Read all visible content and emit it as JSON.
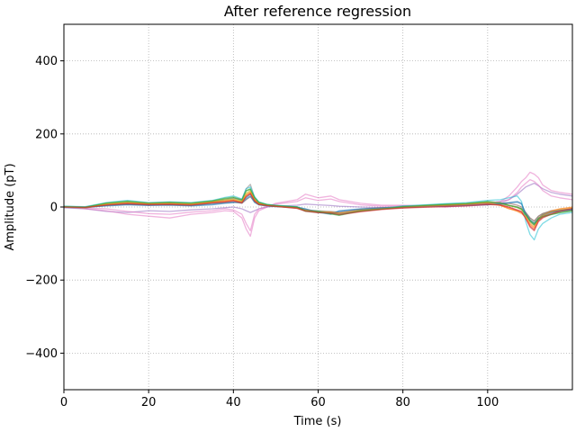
{
  "chart_data": {
    "type": "line",
    "title": "After reference regression",
    "xlabel": "Time (s)",
    "ylabel": "Amplitude (pT)",
    "xlim": [
      0,
      120
    ],
    "ylim": [
      -500,
      500
    ],
    "xticks": [
      0,
      20,
      40,
      60,
      80,
      100
    ],
    "xtick_labels": [
      "0",
      "20",
      "40",
      "60",
      "80",
      "100"
    ],
    "yticks": [
      -400,
      -200,
      0,
      200,
      400
    ],
    "ytick_labels": [
      "−400",
      "−200",
      "0",
      "200",
      "400"
    ],
    "grid": true,
    "grid_style": "dotted",
    "legend": "none",
    "series_style": "many overlapping semi-transparent channel traces",
    "x": [
      0,
      5,
      10,
      15,
      20,
      25,
      30,
      35,
      38,
      40,
      42,
      43,
      44,
      45,
      46,
      48,
      50,
      55,
      57,
      60,
      63,
      65,
      70,
      75,
      80,
      85,
      90,
      95,
      100,
      103,
      105,
      107,
      108,
      109,
      110,
      111,
      112,
      113,
      115,
      117,
      120
    ],
    "series": [
      {
        "color": "#1f77b4",
        "values": [
          0,
          -1,
          3,
          6,
          4,
          5,
          3,
          6,
          10,
          12,
          15,
          25,
          35,
          15,
          8,
          4,
          2,
          0,
          -5,
          -15,
          -20,
          -10,
          -5,
          -2,
          0,
          2,
          3,
          5,
          8,
          10,
          12,
          15,
          10,
          -20,
          -40,
          -50,
          -35,
          -25,
          -15,
          -12,
          -8
        ]
      },
      {
        "color": "#ff7f0e",
        "values": [
          0,
          -3,
          8,
          12,
          8,
          10,
          8,
          14,
          18,
          20,
          15,
          35,
          42,
          20,
          10,
          5,
          3,
          -2,
          -8,
          -12,
          -15,
          -18,
          -8,
          -4,
          0,
          3,
          5,
          8,
          12,
          5,
          -5,
          -10,
          -15,
          -25,
          -45,
          -55,
          -30,
          -20,
          -10,
          -5,
          0
        ]
      },
      {
        "color": "#2ca02c",
        "values": [
          2,
          0,
          10,
          15,
          10,
          12,
          10,
          16,
          22,
          25,
          18,
          45,
          50,
          25,
          12,
          6,
          4,
          0,
          -10,
          -12,
          -18,
          -22,
          -10,
          -5,
          2,
          5,
          8,
          10,
          15,
          12,
          5,
          0,
          -5,
          -20,
          -35,
          -45,
          -30,
          -25,
          -20,
          -15,
          -10
        ]
      },
      {
        "color": "#d62728",
        "values": [
          1,
          -2,
          6,
          10,
          7,
          8,
          6,
          12,
          15,
          18,
          12,
          30,
          38,
          18,
          8,
          4,
          2,
          -4,
          -10,
          -14,
          -16,
          -20,
          -12,
          -6,
          -2,
          0,
          2,
          4,
          8,
          6,
          0,
          -8,
          -12,
          -30,
          -55,
          -65,
          -40,
          -30,
          -20,
          -12,
          -5
        ]
      },
      {
        "color": "#9467bd",
        "values": [
          -2,
          -5,
          -12,
          -15,
          -10,
          -12,
          -8,
          -5,
          -2,
          0,
          -5,
          -10,
          -15,
          -10,
          -5,
          0,
          2,
          5,
          8,
          6,
          4,
          2,
          0,
          -2,
          0,
          2,
          4,
          6,
          10,
          15,
          20,
          35,
          45,
          55,
          60,
          65,
          58,
          50,
          40,
          35,
          30
        ]
      },
      {
        "color": "#8c564b",
        "values": [
          0,
          0,
          5,
          8,
          6,
          6,
          5,
          10,
          12,
          14,
          10,
          20,
          28,
          14,
          6,
          3,
          1,
          -3,
          -12,
          -16,
          -14,
          -16,
          -10,
          -5,
          -2,
          1,
          3,
          5,
          7,
          8,
          10,
          5,
          0,
          -15,
          -30,
          -38,
          -25,
          -18,
          -12,
          -10,
          -8
        ]
      },
      {
        "color": "#e377c2",
        "values": [
          0,
          -5,
          -10,
          -20,
          -25,
          -30,
          -20,
          -15,
          -10,
          -12,
          -30,
          -60,
          -80,
          -30,
          -10,
          0,
          10,
          20,
          35,
          25,
          30,
          20,
          10,
          5,
          5,
          3,
          0,
          5,
          10,
          15,
          30,
          55,
          70,
          80,
          95,
          90,
          80,
          60,
          45,
          40,
          35
        ]
      },
      {
        "color": "#e377c2",
        "values": [
          0,
          -3,
          -5,
          -12,
          -18,
          -20,
          -14,
          -10,
          -5,
          -8,
          -20,
          -45,
          -65,
          -20,
          -5,
          2,
          8,
          15,
          25,
          18,
          22,
          15,
          6,
          2,
          3,
          2,
          0,
          3,
          6,
          10,
          20,
          40,
          55,
          65,
          75,
          70,
          60,
          45,
          30,
          25,
          20
        ]
      },
      {
        "color": "#7f7f7f",
        "values": [
          1,
          -1,
          7,
          12,
          9,
          10,
          8,
          14,
          20,
          24,
          20,
          50,
          62,
          25,
          10,
          4,
          2,
          -2,
          -8,
          -10,
          -12,
          -14,
          -6,
          -2,
          1,
          3,
          5,
          6,
          10,
          8,
          4,
          0,
          -5,
          -15,
          -30,
          -40,
          -25,
          -18,
          -10,
          -8,
          -5
        ]
      },
      {
        "color": "#bcbd22",
        "values": [
          1,
          0,
          9,
          14,
          10,
          11,
          9,
          15,
          20,
          22,
          16,
          38,
          45,
          22,
          10,
          5,
          3,
          -1,
          -9,
          -11,
          -16,
          -19,
          -9,
          -4,
          1,
          4,
          6,
          9,
          13,
          10,
          4,
          -2,
          -8,
          -22,
          -40,
          -50,
          -32,
          -22,
          -14,
          -9,
          -4
        ]
      },
      {
        "color": "#17becf",
        "values": [
          2,
          1,
          12,
          18,
          12,
          14,
          12,
          18,
          26,
          30,
          22,
          50,
          55,
          28,
          14,
          7,
          5,
          1,
          -9,
          -11,
          -17,
          -20,
          -9,
          -4,
          3,
          6,
          9,
          12,
          18,
          20,
          25,
          30,
          15,
          -40,
          -75,
          -90,
          -60,
          -45,
          -30,
          -20,
          -15
        ]
      },
      {
        "color": "#1f77b4",
        "values": [
          -1,
          -2,
          4,
          7,
          5,
          6,
          4,
          8,
          11,
          13,
          11,
          22,
          30,
          12,
          6,
          3,
          1,
          -1,
          -6,
          -13,
          -18,
          -12,
          -6,
          -3,
          -1,
          1,
          2,
          4,
          6,
          9,
          11,
          13,
          8,
          -18,
          -36,
          -45,
          -32,
          -22,
          -14,
          -10,
          -6
        ]
      },
      {
        "color": "#ff7f0e",
        "values": [
          0,
          -2,
          7,
          11,
          9,
          9,
          7,
          13,
          16,
          19,
          13,
          32,
          40,
          18,
          9,
          4,
          2,
          -2,
          -9,
          -13,
          -14,
          -17,
          -9,
          -5,
          -1,
          2,
          4,
          7,
          11,
          4,
          -4,
          -12,
          -18,
          -28,
          -48,
          -58,
          -34,
          -24,
          -12,
          -6,
          -2
        ]
      },
      {
        "color": "#2ca02c",
        "values": [
          1,
          -1,
          11,
          16,
          11,
          13,
          11,
          17,
          24,
          27,
          20,
          44,
          48,
          26,
          13,
          7,
          4,
          0,
          -11,
          -13,
          -19,
          -23,
          -11,
          -6,
          1,
          4,
          7,
          9,
          14,
          11,
          4,
          -1,
          -6,
          -22,
          -38,
          -48,
          -33,
          -27,
          -21,
          -16,
          -11
        ]
      },
      {
        "color": "#d62728",
        "values": [
          0,
          -1,
          5,
          9,
          6,
          7,
          5,
          11,
          14,
          17,
          11,
          28,
          36,
          17,
          7,
          4,
          2,
          -3,
          -11,
          -15,
          -17,
          -21,
          -13,
          -7,
          -3,
          -1,
          1,
          3,
          7,
          5,
          -1,
          -9,
          -14,
          -32,
          -52,
          -62,
          -38,
          -28,
          -18,
          -11,
          -4
        ]
      }
    ]
  }
}
